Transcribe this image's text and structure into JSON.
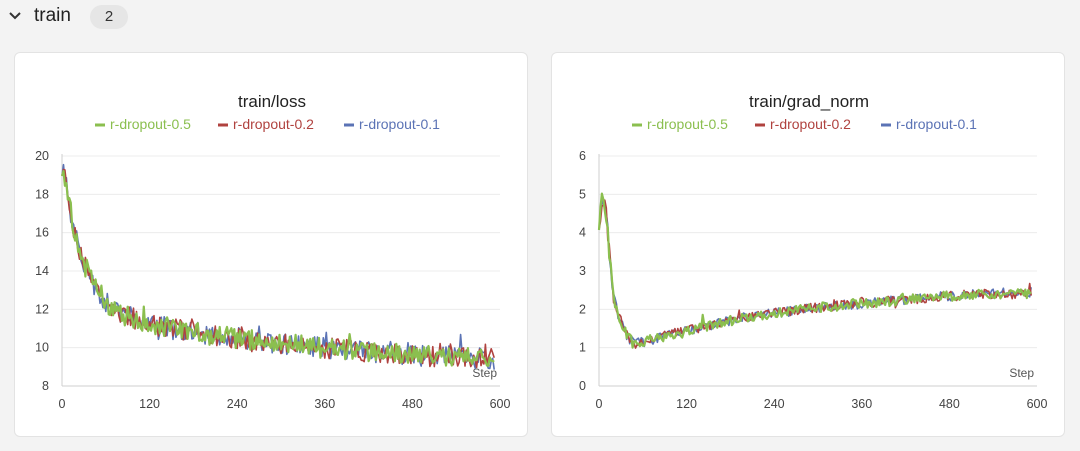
{
  "section": {
    "title": "train",
    "count": "2"
  },
  "colors": {
    "r_dropout_0_5": "#8bbf4f",
    "r_dropout_0_2": "#b0423f",
    "r_dropout_0_1": "#5b73b5"
  },
  "chart_data": [
    {
      "type": "line",
      "title": "train/loss",
      "xlabel": "Step",
      "xlim": [
        0,
        600
      ],
      "ylim": [
        8,
        20
      ],
      "xticks": [
        "0",
        "120",
        "240",
        "360",
        "480",
        "600"
      ],
      "yticks": [
        "8",
        "10",
        "12",
        "14",
        "16",
        "18",
        "20"
      ],
      "grid": true,
      "legend_position": "top",
      "series": [
        {
          "name": "r-dropout-0.5",
          "color": "#8bbf4f"
        },
        {
          "name": "r-dropout-0.2",
          "color": "#b0423f"
        },
        {
          "name": "r-dropout-0.1",
          "color": "#5b73b5"
        }
      ],
      "trend": {
        "x": [
          0,
          5,
          10,
          20,
          30,
          40,
          60,
          80,
          120,
          180,
          240,
          300,
          360,
          420,
          480,
          540,
          590
        ],
        "y": [
          19.5,
          18.6,
          17.3,
          15.6,
          14.4,
          13.5,
          12.4,
          11.8,
          11.2,
          10.8,
          10.5,
          10.2,
          10.0,
          9.8,
          9.6,
          9.5,
          9.4
        ]
      }
    },
    {
      "type": "line",
      "title": "train/grad_norm",
      "xlabel": "Step",
      "xlim": [
        0,
        600
      ],
      "ylim": [
        0,
        6
      ],
      "xticks": [
        "0",
        "120",
        "240",
        "360",
        "480",
        "600"
      ],
      "yticks": [
        "0",
        "1",
        "2",
        "3",
        "4",
        "5",
        "6"
      ],
      "grid": true,
      "legend_position": "top",
      "series": [
        {
          "name": "r-dropout-0.5",
          "color": "#8bbf4f"
        },
        {
          "name": "r-dropout-0.2",
          "color": "#b0423f"
        },
        {
          "name": "r-dropout-0.1",
          "color": "#5b73b5"
        }
      ],
      "trend": {
        "x": [
          0,
          5,
          10,
          15,
          20,
          30,
          40,
          50,
          60,
          80,
          120,
          180,
          240,
          300,
          360,
          420,
          480,
          540,
          590
        ],
        "y": [
          4.3,
          4.8,
          4.5,
          3.3,
          2.3,
          1.7,
          1.25,
          1.1,
          1.15,
          1.25,
          1.45,
          1.7,
          1.9,
          2.05,
          2.15,
          2.25,
          2.35,
          2.4,
          2.4
        ]
      }
    }
  ]
}
